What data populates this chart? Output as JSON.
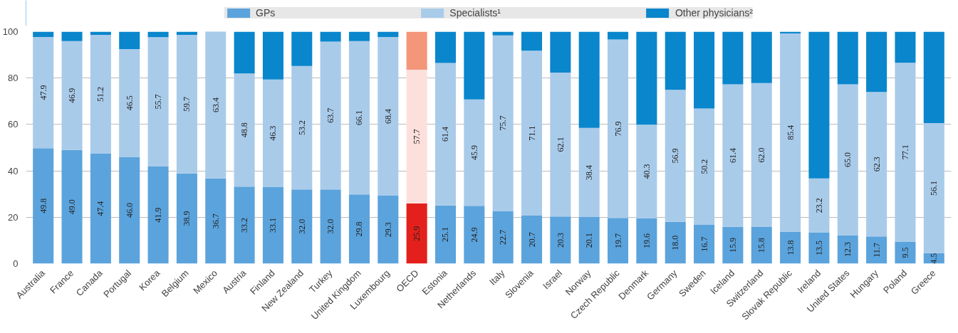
{
  "chart_data": {
    "type": "bar",
    "stacked": true,
    "categories": [
      "Australia",
      "France",
      "Canada",
      "Portugal",
      "Korea",
      "Belgium",
      "Mexico",
      "Austria",
      "Finland",
      "New Zealand",
      "Turkey",
      "United Kingdom",
      "Luxembourg",
      "OECD",
      "Estonia",
      "Netherlands",
      "Italy",
      "Slovenia",
      "Israel",
      "Norway",
      "Czech Republic",
      "Denmark",
      "Germany",
      "Sweden",
      "Iceland",
      "Switzerland",
      "Slovak Republic",
      "Ireland",
      "United States",
      "Hungary",
      "Poland",
      "Greece"
    ],
    "series": [
      {
        "name": "GPs",
        "color": "#5ba3dc",
        "colors": [
          "#5ba3dc",
          "#5ba3dc",
          "#5ba3dc",
          "#5ba3dc",
          "#5ba3dc",
          "#5ba3dc",
          "#5ba3dc",
          "#5ba3dc",
          "#5ba3dc",
          "#5ba3dc",
          "#5ba3dc",
          "#5ba3dc",
          "#5ba3dc",
          "#e3201b",
          "#5ba3dc",
          "#5ba3dc",
          "#5ba3dc",
          "#5ba3dc",
          "#5ba3dc",
          "#5ba3dc",
          "#5ba3dc",
          "#5ba3dc",
          "#5ba3dc",
          "#5ba3dc",
          "#5ba3dc",
          "#5ba3dc",
          "#5ba3dc",
          "#5ba3dc",
          "#5ba3dc",
          "#5ba3dc",
          "#5ba3dc",
          "#5ba3dc"
        ],
        "values": [
          49.8,
          49.0,
          47.4,
          46.0,
          41.9,
          38.9,
          36.7,
          33.2,
          33.1,
          32.0,
          32.0,
          29.8,
          29.3,
          25.9,
          25.1,
          24.9,
          22.7,
          20.7,
          20.3,
          20.1,
          19.7,
          19.6,
          18.0,
          16.7,
          15.9,
          15.8,
          13.8,
          13.5,
          12.3,
          11.7,
          9.5,
          4.5
        ],
        "value_labels": [
          "49.8",
          "49.0",
          "47.4",
          "46.0",
          "41.9",
          "38.9",
          "36.7",
          "33.2",
          "33.1",
          "32.0",
          "32.0",
          "29.8",
          "29.3",
          "25.9",
          "25.1",
          "24.9",
          "22.7",
          "20.7",
          "20.3",
          "20.1",
          "19.7",
          "19.6",
          "18.0",
          "16.7",
          "15.9",
          "15.8",
          "13.8",
          "13.5",
          "12.3",
          "11.7",
          "9.5",
          "4.5"
        ]
      },
      {
        "name": "Specialists¹",
        "color": "#a9cbea",
        "colors": [
          "#a9cbea",
          "#a9cbea",
          "#a9cbea",
          "#a9cbea",
          "#a9cbea",
          "#a9cbea",
          "#a9cbea",
          "#a9cbea",
          "#a9cbea",
          "#a9cbea",
          "#a9cbea",
          "#a9cbea",
          "#a9cbea",
          "#fde0dc",
          "#a9cbea",
          "#a9cbea",
          "#a9cbea",
          "#a9cbea",
          "#a9cbea",
          "#a9cbea",
          "#a9cbea",
          "#a9cbea",
          "#a9cbea",
          "#a9cbea",
          "#a9cbea",
          "#a9cbea",
          "#a9cbea",
          "#a9cbea",
          "#a9cbea",
          "#a9cbea",
          "#a9cbea",
          "#a9cbea"
        ],
        "values": [
          47.9,
          46.9,
          51.2,
          46.5,
          55.7,
          59.7,
          63.4,
          48.8,
          46.3,
          53.2,
          63.7,
          66.1,
          68.4,
          57.7,
          61.4,
          45.9,
          75.7,
          71.1,
          62.1,
          38.4,
          76.9,
          40.3,
          56.9,
          50.2,
          61.4,
          62.0,
          85.4,
          23.2,
          65.0,
          62.3,
          77.1,
          56.1
        ],
        "value_labels": [
          "47.9",
          "46.9",
          "51.2",
          "46.5",
          "55.7",
          "59.7",
          "63.4",
          "48.8",
          "46.3",
          "53.2",
          "63.7",
          "66.1",
          "68.4",
          "57.7",
          "61.4",
          "45.9",
          "75.7",
          "71.1",
          "62.1",
          "38.4",
          "76.9",
          "40.3",
          "56.9",
          "50.2",
          "61.4",
          "62.0",
          "85.4",
          "23.2",
          "65.0",
          "62.3",
          "77.1",
          "56.1"
        ]
      },
      {
        "name": "Other physicians²",
        "color": "#0a86cc",
        "colors": [
          "#0a86cc",
          "#0a86cc",
          "#0a86cc",
          "#0a86cc",
          "#0a86cc",
          "#0a86cc",
          "#0a86cc",
          "#0a86cc",
          "#0a86cc",
          "#0a86cc",
          "#0a86cc",
          "#0a86cc",
          "#0a86cc",
          "#f4967a",
          "#0a86cc",
          "#0a86cc",
          "#0a86cc",
          "#0a86cc",
          "#0a86cc",
          "#0a86cc",
          "#0a86cc",
          "#0a86cc",
          "#0a86cc",
          "#0a86cc",
          "#0a86cc",
          "#0a86cc",
          "#0a86cc",
          "#0a86cc",
          "#0a86cc",
          "#0a86cc",
          "#0a86cc",
          "#0a86cc"
        ],
        "values": [
          2.3,
          4.1,
          1.4,
          7.5,
          2.4,
          1.4,
          0.0,
          18.0,
          20.6,
          14.8,
          4.3,
          4.1,
          2.3,
          16.4,
          13.5,
          29.2,
          1.6,
          8.2,
          17.6,
          41.5,
          3.4,
          40.1,
          25.1,
          33.1,
          22.7,
          22.2,
          0.8,
          63.3,
          22.7,
          26.0,
          13.4,
          39.4
        ]
      }
    ],
    "ylim": [
      0,
      100
    ],
    "yticks": [
      0,
      20,
      40,
      60,
      80,
      100
    ],
    "grid": "y",
    "legend": "top"
  }
}
